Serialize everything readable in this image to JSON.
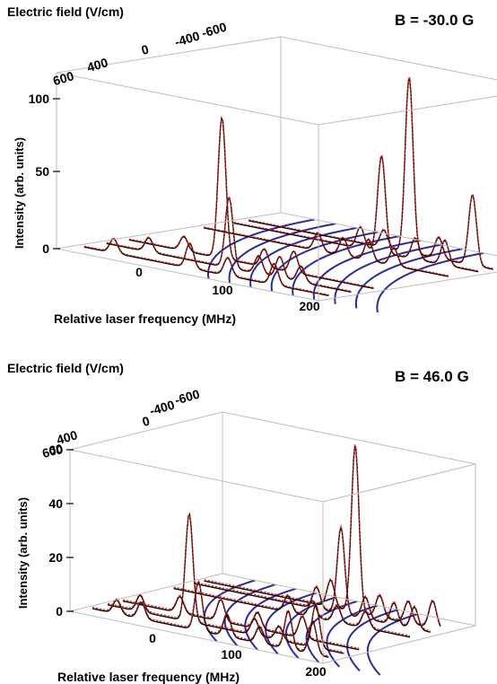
{
  "chart_data": [
    {
      "type": "3d-line",
      "title": "B = -30.0 G",
      "xlabel": "Relative laser frequency (MHz)",
      "ylabel": "Electric field (V/cm)",
      "zlabel": "Intensity (arb. units)",
      "x_ticks": [
        "0",
        "100",
        "200"
      ],
      "y_ticks": [
        "600",
        "400",
        "0",
        "-400",
        "-600"
      ],
      "z_ticks": [
        "0",
        "50",
        "100"
      ],
      "zlim": [
        0,
        100
      ],
      "series": [
        {
          "field": 650,
          "peaks": [
            [
              -20,
              8
            ],
            [
              70,
              14
            ],
            [
              115,
              10
            ],
            [
              170,
              12
            ]
          ]
        },
        {
          "field": 500,
          "peaks": [
            [
              -5,
              8
            ],
            [
              90,
              40
            ],
            [
              125,
              10
            ],
            [
              150,
              12
            ],
            [
              175,
              9
            ]
          ]
        },
        {
          "field": 350,
          "peaks": [
            [
              10,
              8
            ],
            [
              55,
              80
            ],
            [
              105,
              10
            ],
            [
              140,
              12
            ]
          ]
        },
        {
          "field": -150,
          "peaks": [
            [
              80,
              10
            ],
            [
              110,
              10
            ],
            [
              140,
              12
            ],
            [
              170,
              10
            ]
          ]
        },
        {
          "field": -350,
          "peaks": [
            [
              95,
              12
            ],
            [
              120,
              55
            ],
            [
              160,
              12
            ],
            [
              195,
              14
            ]
          ]
        },
        {
          "field": -450,
          "peaks": [
            [
              105,
              10
            ],
            [
              135,
              100
            ],
            [
              170,
              12
            ],
            [
              210,
              40
            ]
          ]
        }
      ]
    },
    {
      "type": "3d-line",
      "title": "B = 46.0 G",
      "xlabel": "Relative laser frequency (MHz)",
      "ylabel": "Electric field (V/cm)",
      "zlabel": "Intensity (arb. units)",
      "x_ticks": [
        "0",
        "100",
        "200"
      ],
      "y_ticks": [
        "600",
        "400",
        "0",
        "-400",
        "-600"
      ],
      "z_ticks": [
        "0",
        "20",
        "40",
        "60"
      ],
      "zlim": [
        0,
        60
      ],
      "series": [
        {
          "field": 650,
          "peaks": [
            [
              -25,
              5
            ],
            [
              5,
              6
            ],
            [
              75,
              18
            ],
            [
              110,
              8
            ],
            [
              150,
              6
            ],
            [
              185,
              14
            ],
            [
              215,
              12
            ]
          ]
        },
        {
          "field": 500,
          "peaks": [
            [
              -15,
              6
            ],
            [
              45,
              40
            ],
            [
              125,
              6
            ],
            [
              155,
              5
            ],
            [
              200,
              16
            ]
          ]
        },
        {
          "field": 350,
          "peaks": [
            [
              15,
              6
            ],
            [
              65,
              8
            ],
            [
              110,
              6
            ],
            [
              165,
              8
            ]
          ]
        },
        {
          "field": -150,
          "peaks": [
            [
              85,
              6
            ],
            [
              115,
              6
            ],
            [
              145,
              6
            ],
            [
              180,
              6
            ]
          ]
        },
        {
          "field": -350,
          "peaks": [
            [
              95,
              8
            ],
            [
              125,
              32
            ],
            [
              155,
              8
            ],
            [
              190,
              8
            ],
            [
              215,
              8
            ]
          ]
        },
        {
          "field": -450,
          "peaks": [
            [
              100,
              10
            ],
            [
              130,
              62
            ],
            [
              160,
              8
            ],
            [
              195,
              8
            ],
            [
              225,
              10
            ]
          ]
        }
      ]
    }
  ]
}
